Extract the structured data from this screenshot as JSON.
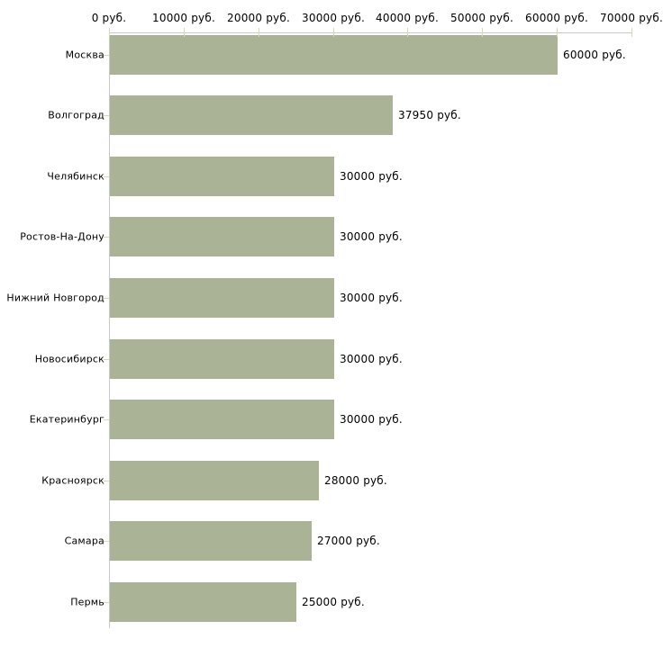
{
  "chart_data": {
    "type": "bar",
    "orientation": "horizontal",
    "title": "",
    "xlabel": "",
    "ylabel": "",
    "categories": [
      "Москва",
      "Волгоград",
      "Челябинск",
      "Ростов-На-Дону",
      "Нижний Новгород",
      "Новосибирск",
      "Екатеринбург",
      "Красноярск",
      "Самара",
      "Пермь"
    ],
    "values": [
      60000,
      37950,
      30000,
      30000,
      30000,
      30000,
      30000,
      28000,
      27000,
      25000
    ],
    "value_labels": [
      "60000 руб.",
      "37950 руб.",
      "30000 руб.",
      "30000 руб.",
      "30000 руб.",
      "30000 руб.",
      "30000 руб.",
      "28000 руб.",
      "27000 руб.",
      "25000 руб."
    ],
    "xlim": [
      0,
      70000
    ],
    "x_ticks": [
      0,
      10000,
      20000,
      30000,
      40000,
      50000,
      60000,
      70000
    ],
    "x_tick_labels": [
      "0 руб.",
      "10000 руб.",
      "20000 руб.",
      "30000 руб.",
      "40000 руб.",
      "50000 руб.",
      "60000 руб.",
      "70000 руб."
    ],
    "grid": false,
    "legend": false,
    "colors": {
      "bar_fill": "#abb397",
      "axis_line": "#c9c9c9",
      "tick_mark": "#d6d9b2",
      "text": "#000000",
      "background": "#ffffff"
    }
  }
}
